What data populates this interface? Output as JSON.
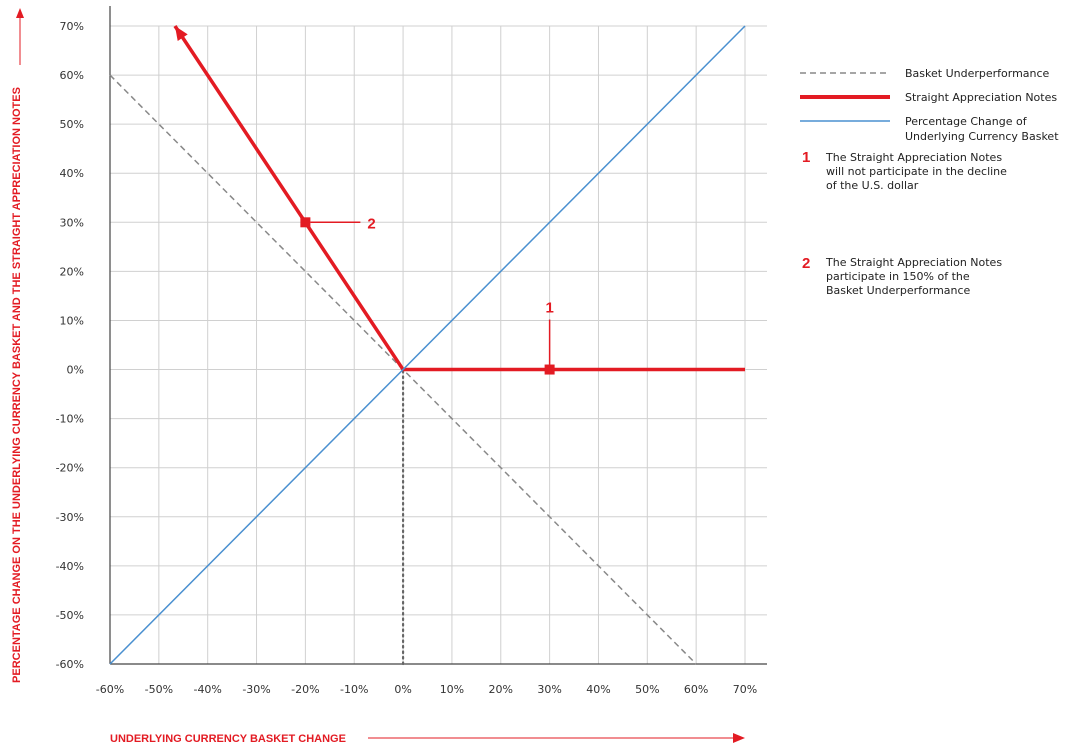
{
  "colors": {
    "red": "#e31b23",
    "blue": "#4a90d0",
    "gray_dash": "#888888",
    "grid": "#d0d0d0",
    "dotted": "#666666"
  },
  "chart_data": {
    "type": "line",
    "xlabel": "UNDERLYING CURRENCY BASKET CHANGE",
    "ylabel": "PERCENTAGE CHANGE ON THE UNDERLYING CURRENCY BASKET AND THE STRAIGHT APPRECIATION NOTES",
    "xlim": [
      -60,
      70
    ],
    "ylim": [
      -60,
      70
    ],
    "x_ticks": [
      -60,
      -50,
      -40,
      -30,
      -20,
      -10,
      0,
      10,
      20,
      30,
      40,
      50,
      60,
      70
    ],
    "y_ticks": [
      -60,
      -50,
      -40,
      -30,
      -20,
      -10,
      0,
      10,
      20,
      30,
      40,
      50,
      60,
      70
    ],
    "x_tick_labels": [
      "-60%",
      "-50%",
      "-40%",
      "-30%",
      "-20%",
      "-10%",
      "0%",
      "10%",
      "20%",
      "30%",
      "40%",
      "50%",
      "60%",
      "70%"
    ],
    "y_tick_labels": [
      "-60%",
      "-50%",
      "-40%",
      "-30%",
      "-20%",
      "-10%",
      "0%",
      "10%",
      "20%",
      "30%",
      "40%",
      "50%",
      "60%",
      "70%"
    ],
    "grid": true,
    "legend_position": "right",
    "series": [
      {
        "name": "Basket Underperformance",
        "style": "dashed",
        "color": "#888888",
        "points": [
          [
            -60,
            60
          ],
          [
            60,
            -60
          ]
        ]
      },
      {
        "name": "Straight Appreciation Notes",
        "style": "thick-solid-arrow",
        "color": "#e31b23",
        "points": [
          [
            70,
            0
          ],
          [
            0,
            0
          ],
          [
            -46.7,
            70
          ]
        ]
      },
      {
        "name": "Percentage Change of Underlying Currency Basket",
        "style": "solid",
        "color": "#4a90d0",
        "points": [
          [
            -60,
            -60
          ],
          [
            70,
            70
          ]
        ]
      }
    ],
    "vertical_reference": {
      "x": 0,
      "from_y": -60,
      "to_y": 0,
      "style": "dotted"
    },
    "annotations": [
      {
        "number": "1",
        "x": 30,
        "y": 0,
        "label_side": "above",
        "text": [
          "The Straight Appreciation Notes",
          "will not participate in the decline",
          "of the U.S. dollar"
        ]
      },
      {
        "number": "2",
        "x": -20,
        "y": 30,
        "label_side": "right",
        "text": [
          "The Straight Appreciation Notes",
          "participate in 150% of the",
          "Basket Underperformance"
        ]
      }
    ]
  }
}
